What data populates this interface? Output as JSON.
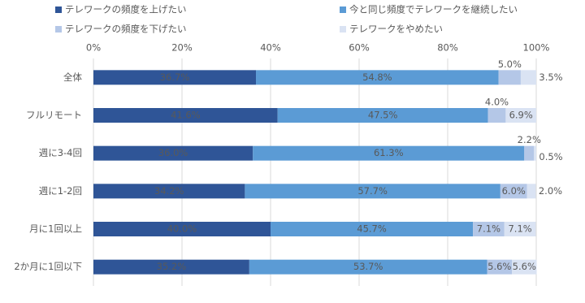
{
  "chart_data": {
    "type": "stacked-bar-horizontal",
    "categories": [
      "全体",
      "フルリモート",
      "週に3-4回",
      "週に1-2回",
      "月に1回以上",
      "2か月に1回以下"
    ],
    "series": [
      {
        "name": "テレワークの頻度を上げたい",
        "color": "#2f5597",
        "values": [
          36.7,
          41.6,
          36.0,
          34.2,
          40.0,
          35.2
        ],
        "value_labels": [
          "36.7%",
          "41.6%",
          "36.0%",
          "34.2%",
          "40.0%",
          "35.2%"
        ]
      },
      {
        "name": "今と同じ頻度でテレワークを継続したい",
        "color": "#5b9bd5",
        "values": [
          54.8,
          47.5,
          61.3,
          57.7,
          45.7,
          53.7
        ],
        "value_labels": [
          "54.8%",
          "47.5%",
          "61.3%",
          "57.7%",
          "45.7%",
          "53.7%"
        ]
      },
      {
        "name": "テレワークの頻度を下げたい",
        "color": "#b4c7e7",
        "values": [
          5.0,
          4.0,
          2.2,
          6.0,
          7.1,
          5.6
        ],
        "value_labels": [
          "5.0%",
          "4.0%",
          "2.2%",
          "6.0%",
          "7.1%",
          "5.6%"
        ]
      },
      {
        "name": "テレワークをやめたい",
        "color": "#dae3f3",
        "values": [
          3.5,
          6.9,
          0.5,
          2.0,
          7.1,
          5.6
        ],
        "value_labels": [
          "3.5%",
          "6.9%",
          "0.5%",
          "2.0%",
          "7.1%",
          "5.6%"
        ]
      }
    ],
    "xlim": [
      0,
      100
    ],
    "xticks": [
      {
        "value": 0,
        "label": "0%"
      },
      {
        "value": 20,
        "label": "20%"
      },
      {
        "value": 40,
        "label": "40%"
      },
      {
        "value": 60,
        "label": "60%"
      },
      {
        "value": 80,
        "label": "80%"
      },
      {
        "value": 100,
        "label": "100%"
      }
    ],
    "grid": true
  }
}
